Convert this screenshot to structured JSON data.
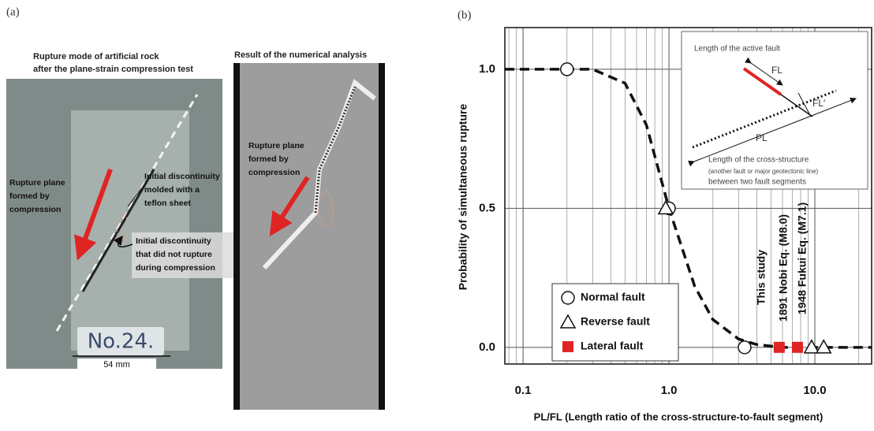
{
  "panel_a": {
    "label": "(a)",
    "left_title": [
      "Rupture mode of artificial rock",
      "after the plane-strain compression test"
    ],
    "right_title": "Result of the numerical analysis",
    "rupture_plane_left": [
      "Rupture plane",
      "formed by",
      "compression"
    ],
    "initial_molded": [
      "Initial discontinuity",
      "molded with a",
      "teflon sheet"
    ],
    "initial_not_ruptured": [
      "Initial discontinuity",
      "that did not rupture",
      "during compression"
    ],
    "specimen": "No.24.",
    "width": "54 mm",
    "rupture_plane_right": [
      "Rupture plane",
      "formed by",
      "compression"
    ]
  },
  "chart_data": {
    "type": "scatter",
    "panel_label": "(b)",
    "x_label": "PL/FL (Length ratio of the cross-structure-to-fault segment)",
    "y_label": "Probability of simultaneous rupture",
    "log_x": true,
    "grid": true,
    "xlim": [
      0.075,
      24.5
    ],
    "ylim": [
      -0.06,
      1.15
    ],
    "xticks": [
      0.1,
      {
        "value": 1,
        "label": "1.0"
      },
      {
        "value": 10,
        "label": "10.0"
      }
    ],
    "yticks": [
      {
        "value": 0,
        "label": "0.0"
      },
      0.5,
      {
        "value": 1,
        "label": "1.0"
      }
    ],
    "legend": "lower left",
    "series": [
      {
        "name": "Normal fault",
        "marker": "circle",
        "color": "#ffffff",
        "x": [
          0.2,
          1.0,
          3.3
        ],
        "values": [
          1.0,
          0.5,
          0.0
        ]
      },
      {
        "name": "Reverse fault",
        "marker": "triangle",
        "color": "#ffffff",
        "x": [
          0.95,
          9.5,
          11.5
        ],
        "values": [
          0.5,
          0.0,
          0.0
        ]
      },
      {
        "name": "Lateral fault",
        "marker": "square",
        "color": "#e02424",
        "x": [
          5.7,
          7.6
        ],
        "values": [
          0.0,
          0.0
        ]
      }
    ],
    "curve": {
      "x": [
        0.075,
        0.3,
        0.5,
        0.7,
        1.0,
        1.5,
        2,
        3,
        4,
        6,
        24.5
      ],
      "values": [
        1.0,
        1.0,
        0.95,
        0.8,
        0.5,
        0.22,
        0.1,
        0.03,
        0.01,
        0.0,
        0.0
      ]
    },
    "annotations": [
      "This study",
      "1891 Nobi Eq. (M8.0)",
      "1948 Fukui Eq. (M7.1)"
    ],
    "inset": {
      "active_fault": "Length of the active fault",
      "fl": "FL",
      "fl_prime": "FL′",
      "pl": "PL",
      "cross_structure": "Length of the cross-structure",
      "cross_note": "(another fault or major geotectonic line)",
      "between": "between two fault segments"
    }
  }
}
